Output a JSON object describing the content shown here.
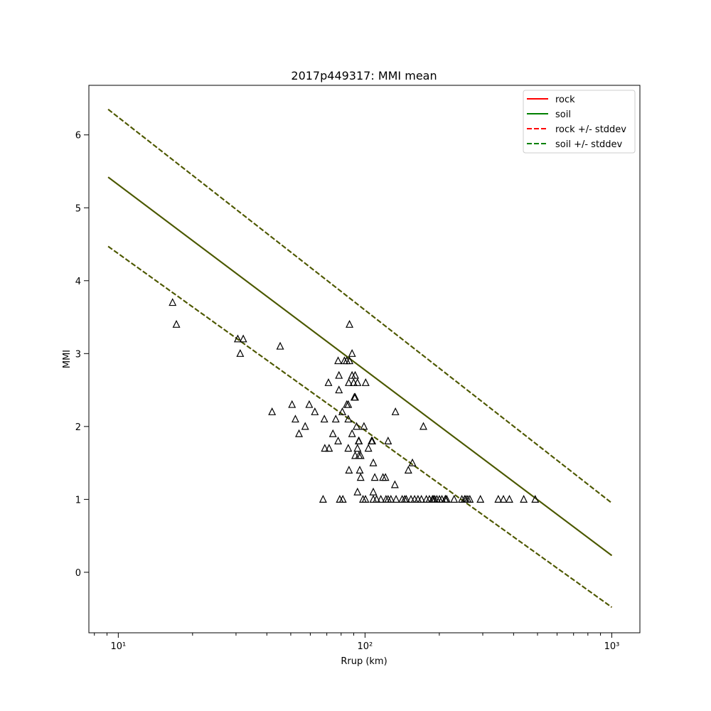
{
  "chart_data": {
    "type": "scatter",
    "title": "2017p449317: MMI mean",
    "xlabel": "Rrup (km)",
    "ylabel": "MMI",
    "xscale": "log",
    "xlim": [
      7.6,
      1300
    ],
    "ylim": [
      -0.83,
      6.68
    ],
    "x_ticks": [
      {
        "value": 10,
        "label": "10¹"
      },
      {
        "value": 100,
        "label": "10²"
      },
      {
        "value": 1000,
        "label": "10³"
      }
    ],
    "y_ticks": [
      0,
      1,
      2,
      3,
      4,
      5,
      6
    ],
    "grid": false,
    "legend_position": "top-right",
    "colors": {
      "rock": "#ff0000",
      "soil": "#008000",
      "overlap": "#406000",
      "points": "#000000"
    },
    "series": [
      {
        "name": "rock",
        "style": "solid",
        "color": "#ff0000",
        "x": [
          9.1,
          1000
        ],
        "y": [
          5.42,
          0.23
        ]
      },
      {
        "name": "soil",
        "style": "solid",
        "color": "#008000",
        "x": [
          9.1,
          1000
        ],
        "y": [
          5.42,
          0.23
        ]
      },
      {
        "name": "rock +/- stddev",
        "style": "dashed",
        "color": "#ff0000",
        "x": [
          9.1,
          1000
        ],
        "y_upper": [
          6.35,
          0.95
        ],
        "y_lower": [
          4.47,
          -0.48
        ]
      },
      {
        "name": "soil +/- stddev",
        "style": "dashed",
        "color": "#008000",
        "x": [
          9.1,
          1000
        ],
        "y_upper": [
          6.35,
          0.95
        ],
        "y_lower": [
          4.47,
          -0.48
        ]
      }
    ],
    "observations": {
      "marker": "triangle",
      "points": [
        [
          16.6,
          3.7
        ],
        [
          17.2,
          3.4
        ],
        [
          30.5,
          3.2
        ],
        [
          32.1,
          3.2
        ],
        [
          31.2,
          3.0
        ],
        [
          45.3,
          3.1
        ],
        [
          42.0,
          2.2
        ],
        [
          50.6,
          2.3
        ],
        [
          52.2,
          2.1
        ],
        [
          54.0,
          1.9
        ],
        [
          57.2,
          2.0
        ],
        [
          59.4,
          2.3
        ],
        [
          62.6,
          2.2
        ],
        [
          67.6,
          1.0
        ],
        [
          68.4,
          2.1
        ],
        [
          68.7,
          1.7
        ],
        [
          71.1,
          2.6
        ],
        [
          71.5,
          1.7
        ],
        [
          74.1,
          1.9
        ],
        [
          76.1,
          2.1
        ],
        [
          77.8,
          1.8
        ],
        [
          77.8,
          2.9
        ],
        [
          78.4,
          2.7
        ],
        [
          78.4,
          2.5
        ],
        [
          79.0,
          1.0
        ],
        [
          80.9,
          2.2
        ],
        [
          81.3,
          1.0
        ],
        [
          82.5,
          2.9
        ],
        [
          84.3,
          2.9
        ],
        [
          84.3,
          2.3
        ],
        [
          85.5,
          2.3
        ],
        [
          85.5,
          2.1
        ],
        [
          85.5,
          1.7
        ],
        [
          85.9,
          2.6
        ],
        [
          86.1,
          1.4
        ],
        [
          86.5,
          2.9
        ],
        [
          86.5,
          3.4
        ],
        [
          88.6,
          3.0
        ],
        [
          88.6,
          2.7
        ],
        [
          88.6,
          1.9
        ],
        [
          89.9,
          2.6
        ],
        [
          90.5,
          2.4
        ],
        [
          91.2,
          2.7
        ],
        [
          91.2,
          2.4
        ],
        [
          91.2,
          1.6
        ],
        [
          92.4,
          2.0
        ],
        [
          93.2,
          1.7
        ],
        [
          93.2,
          1.1
        ],
        [
          93.2,
          2.6
        ],
        [
          94.2,
          1.8
        ],
        [
          94.5,
          1.6
        ],
        [
          94.5,
          1.8
        ],
        [
          95.2,
          1.4
        ],
        [
          96.0,
          1.6
        ],
        [
          96.0,
          1.3
        ],
        [
          98.1,
          1.0
        ],
        [
          99.0,
          2.0
        ],
        [
          100.4,
          1.0
        ],
        [
          100.6,
          2.6
        ],
        [
          103.2,
          1.7
        ],
        [
          106.3,
          1.8
        ],
        [
          107.0,
          1.8
        ],
        [
          108.0,
          1.5
        ],
        [
          108.0,
          1.1
        ],
        [
          108.0,
          1.0
        ],
        [
          109.5,
          1.3
        ],
        [
          111.4,
          1.0
        ],
        [
          115.9,
          1.0
        ],
        [
          118.2,
          1.3
        ],
        [
          121.0,
          1.3
        ],
        [
          121.6,
          1.0
        ],
        [
          124.0,
          1.8
        ],
        [
          124.0,
          1.0
        ],
        [
          127.3,
          1.0
        ],
        [
          132.8,
          2.2
        ],
        [
          132.1,
          1.2
        ],
        [
          133.6,
          1.0
        ],
        [
          141.4,
          1.0
        ],
        [
          144.8,
          1.0
        ],
        [
          146.9,
          1.0
        ],
        [
          149.8,
          1.4
        ],
        [
          153.5,
          1.0
        ],
        [
          155.6,
          1.5
        ],
        [
          158.8,
          1.0
        ],
        [
          163.9,
          1.0
        ],
        [
          169.2,
          1.0
        ],
        [
          172.4,
          2.0
        ],
        [
          177.2,
          1.0
        ],
        [
          182.3,
          1.0
        ],
        [
          187.5,
          1.0
        ],
        [
          189.4,
          1.0
        ],
        [
          191.7,
          1.0
        ],
        [
          195.5,
          1.0
        ],
        [
          200.2,
          1.0
        ],
        [
          204.9,
          1.0
        ],
        [
          211.4,
          1.0
        ],
        [
          212.0,
          1.0
        ],
        [
          214.4,
          1.0
        ],
        [
          229.6,
          1.0
        ],
        [
          246.8,
          1.0
        ],
        [
          253.3,
          1.0
        ],
        [
          256.7,
          1.0
        ],
        [
          261.0,
          1.0
        ],
        [
          265.9,
          1.0
        ],
        [
          293.5,
          1.0
        ],
        [
          346.8,
          1.0
        ],
        [
          363.8,
          1.0
        ],
        [
          384.6,
          1.0
        ],
        [
          439.7,
          1.0
        ],
        [
          489.4,
          1.0
        ]
      ]
    }
  }
}
